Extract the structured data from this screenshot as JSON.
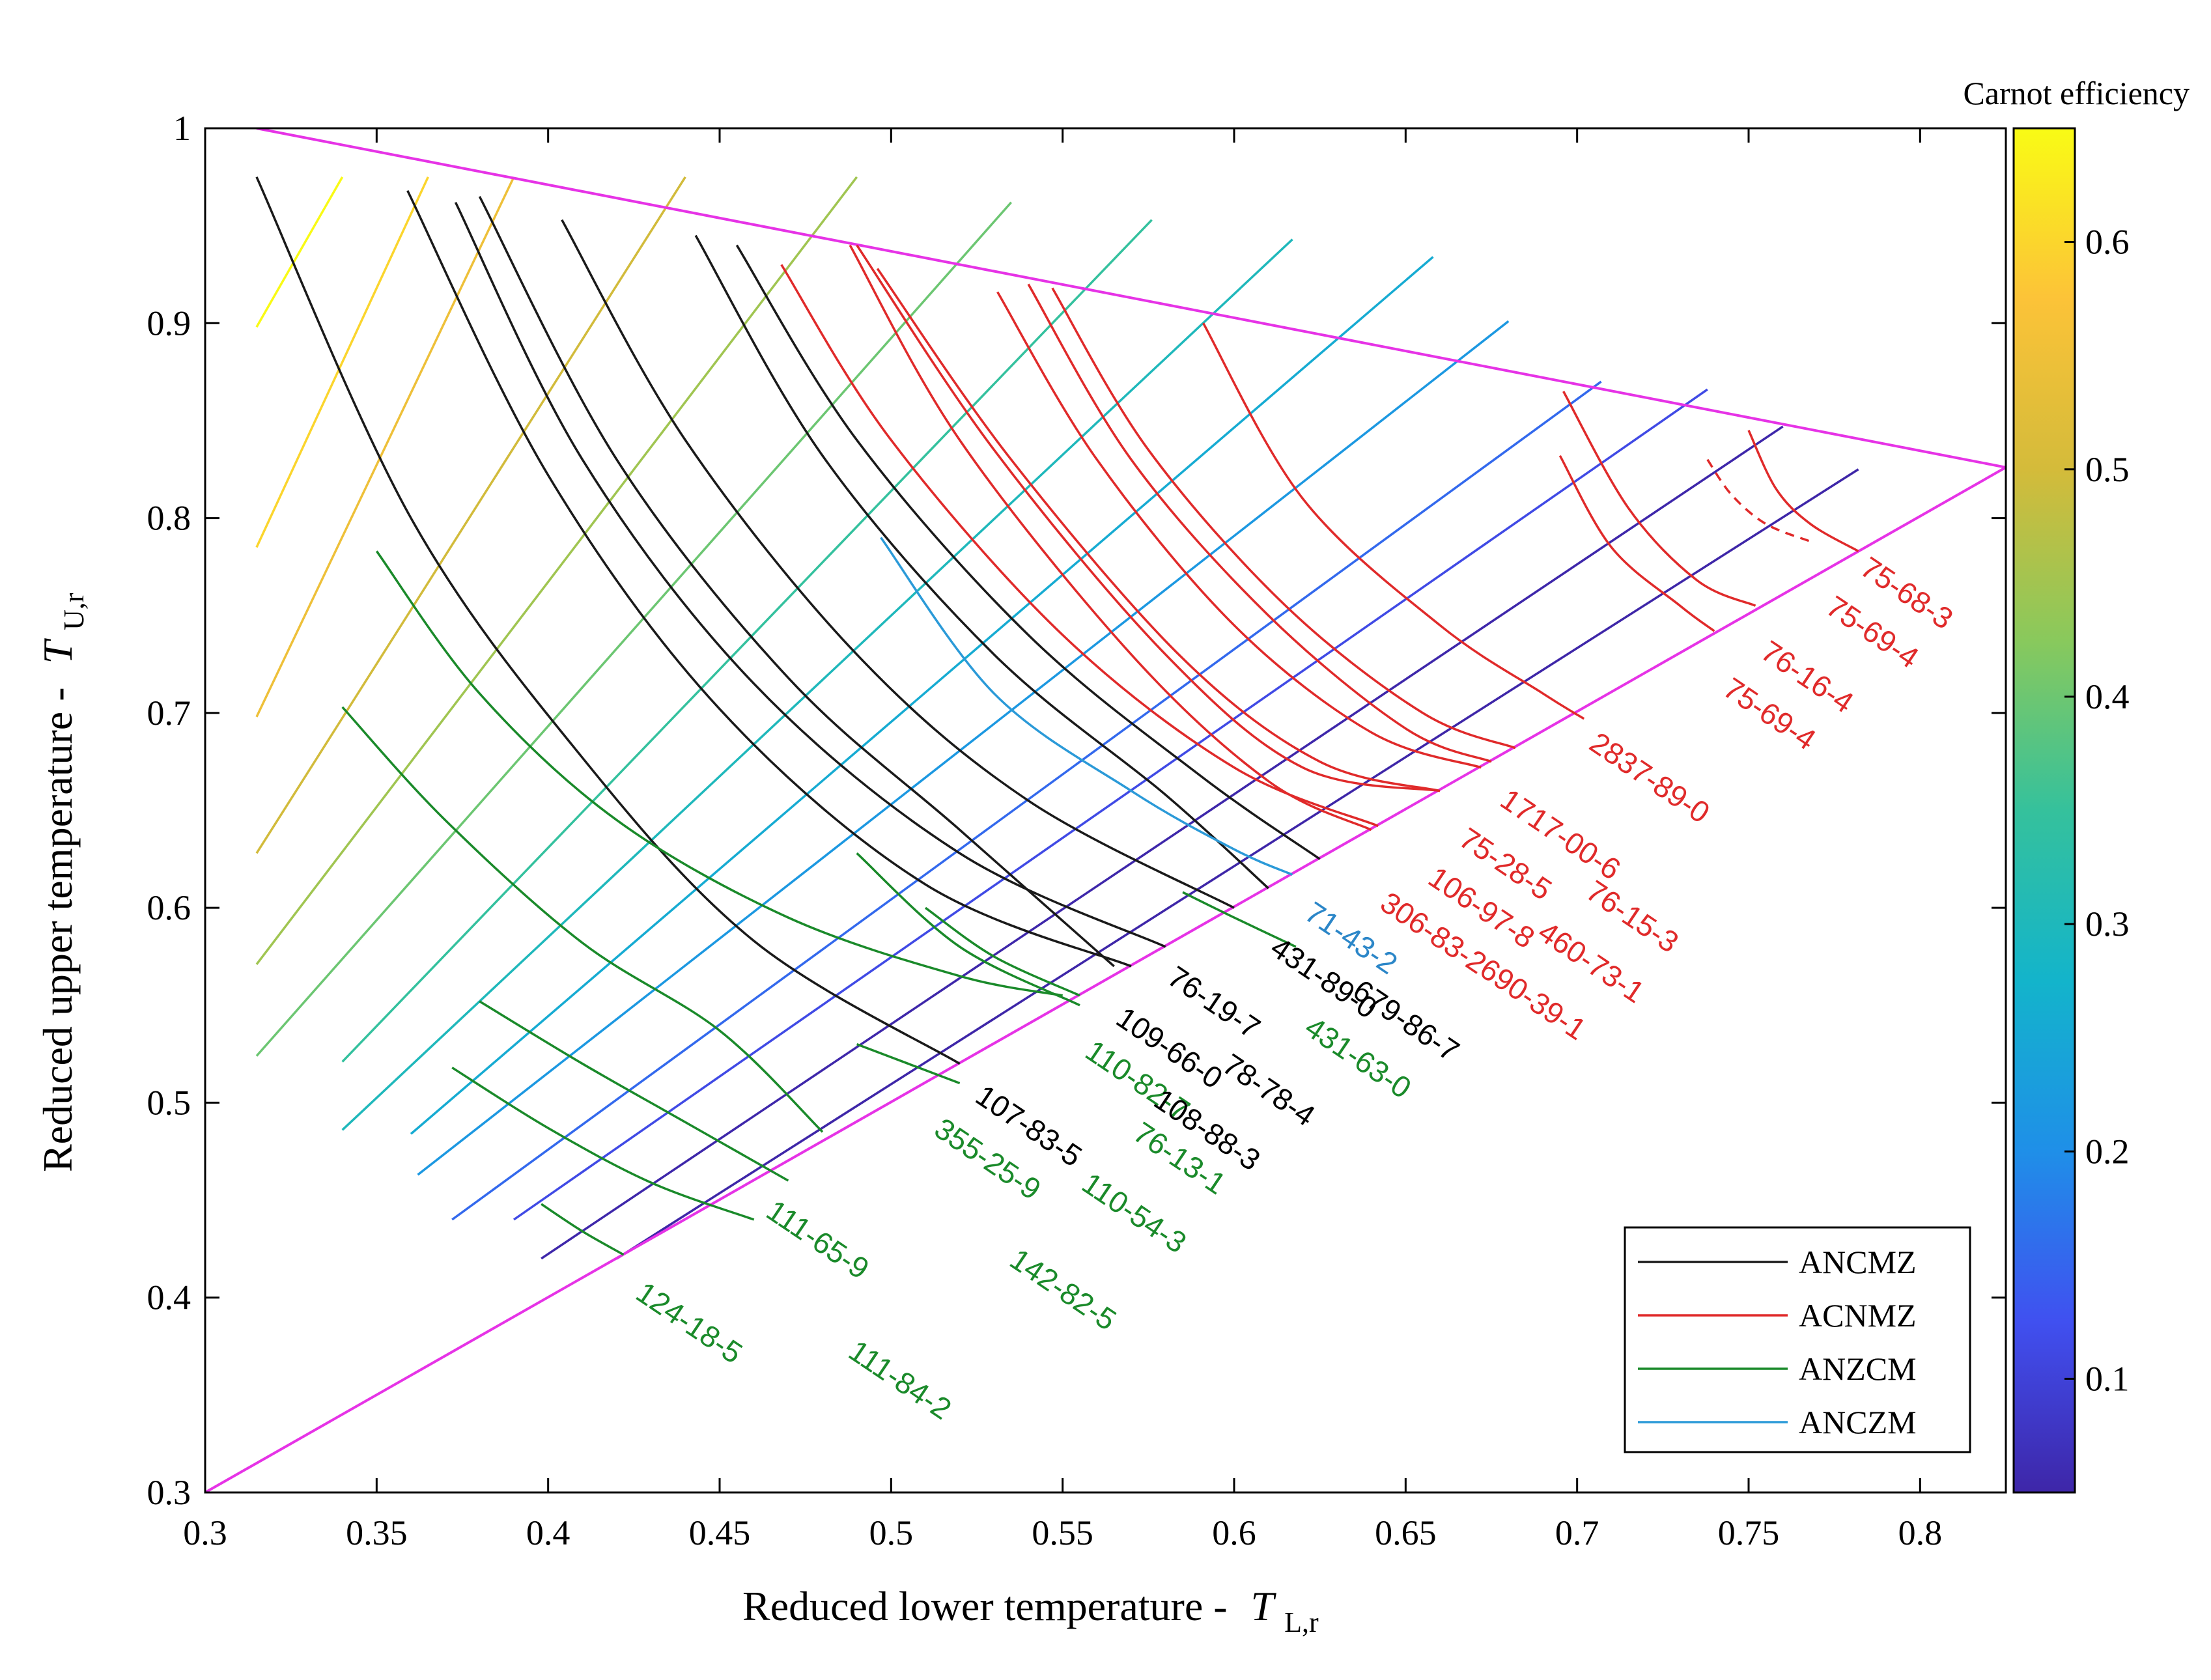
{
  "chart_data": {
    "type": "line",
    "title": "",
    "xlabel": "Reduced lower temperature -",
    "xlabel_symbol": "T",
    "xlabel_sub": "L,r",
    "ylabel": "Reduced upper temperature -",
    "ylabel_symbol": "T",
    "ylabel_sub": "U,r",
    "xlim": [
      0.3,
      0.825
    ],
    "ylim": [
      0.3,
      1.0
    ],
    "x_ticks": [
      "0.3",
      "0.35",
      "0.4",
      "0.45",
      "0.5",
      "0.55",
      "0.6",
      "0.65",
      "0.7",
      "0.75",
      "0.8"
    ],
    "y_ticks": [
      "0.3",
      "0.4",
      "0.5",
      "0.6",
      "0.7",
      "0.8",
      "0.9",
      "1"
    ],
    "grid": false,
    "colorbar": {
      "title": "Carnot efficiency",
      "range": [
        0.05,
        0.65
      ],
      "ticks": [
        "0.1",
        "0.2",
        "0.3",
        "0.4",
        "0.5",
        "0.6"
      ],
      "stops": [
        "#3e26a8",
        "#4050f0",
        "#1f8fe8",
        "#13b4cb",
        "#35c19c",
        "#89c95c",
        "#d4bb3a",
        "#fcc338",
        "#f9fb15"
      ]
    },
    "boundaries": {
      "color": "#e633e6",
      "upper_line": {
        "x": [
          0.315,
          0.825
        ],
        "y": [
          1.0,
          0.826
        ]
      },
      "diagonal": {
        "x": [
          0.3,
          0.825
        ],
        "y": [
          0.3,
          0.826
        ]
      }
    },
    "iso_efficiency_lines": {
      "color_map_value": "carnot efficiency = 1 - T_L/T_U",
      "lines": [
        {
          "x1": 0.315,
          "y1": 0.898,
          "x2": 0.34,
          "y2": 0.975
        },
        {
          "x1": 0.315,
          "y1": 0.785,
          "x2": 0.365,
          "y2": 0.975
        },
        {
          "x1": 0.315,
          "y1": 0.698,
          "x2": 0.39,
          "y2": 0.975
        },
        {
          "x1": 0.315,
          "y1": 0.628,
          "x2": 0.44,
          "y2": 0.975
        },
        {
          "x1": 0.315,
          "y1": 0.571,
          "x2": 0.49,
          "y2": 0.975
        },
        {
          "x1": 0.315,
          "y1": 0.524,
          "x2": 0.535,
          "y2": 0.962
        },
        {
          "x1": 0.34,
          "y1": 0.521,
          "x2": 0.576,
          "y2": 0.953
        },
        {
          "x1": 0.34,
          "y1": 0.486,
          "x2": 0.617,
          "y2": 0.943
        },
        {
          "x1": 0.36,
          "y1": 0.484,
          "x2": 0.658,
          "y2": 0.934
        },
        {
          "x1": 0.362,
          "y1": 0.463,
          "x2": 0.68,
          "y2": 0.901
        },
        {
          "x1": 0.372,
          "y1": 0.44,
          "x2": 0.707,
          "y2": 0.87
        },
        {
          "x1": 0.39,
          "y1": 0.44,
          "x2": 0.738,
          "y2": 0.866
        },
        {
          "x1": 0.398,
          "y1": 0.42,
          "x2": 0.76,
          "y2": 0.847
        },
        {
          "x1": 0.42,
          "y1": 0.42,
          "x2": 0.782,
          "y2": 0.825
        }
      ]
    },
    "series": [
      {
        "name": "ANCMZ",
        "color": "#1a1a1a",
        "curves": [
          {
            "label": "107-83-5",
            "x": [
              0.315,
              0.36,
              0.41,
              0.46,
              0.52
            ],
            "y": [
              0.975,
              0.8,
              0.677,
              0.583,
              0.52
            ]
          },
          {
            "label": "109-66-0",
            "x": [
              0.359,
              0.4,
              0.45,
              0.51,
              0.57
            ],
            "y": [
              0.968,
              0.822,
              0.702,
              0.612,
              0.57
            ]
          },
          {
            "label": "76-19-7",
            "x": [
              0.373,
              0.41,
              0.46,
              0.52,
              0.58
            ],
            "y": [
              0.962,
              0.83,
              0.715,
              0.628,
              0.58
            ]
          },
          {
            "label": "108-88-3",
            "x": [
              0.38,
              0.42,
              0.47,
              0.52,
              0.565
            ],
            "y": [
              0.965,
              0.83,
              0.718,
              0.64,
              0.57
            ]
          },
          {
            "label": "78-78-4",
            "x": [
              0.404,
              0.44,
              0.49,
              0.54,
              0.6
            ],
            "y": [
              0.953,
              0.84,
              0.73,
              0.655,
              0.6
            ]
          },
          {
            "label": "431-89-0",
            "x": [
              0.443,
              0.48,
              0.53,
              0.58,
              0.61
            ],
            "y": [
              0.945,
              0.832,
              0.73,
              0.658,
              0.61
            ]
          },
          {
            "label": "679-86-7",
            "x": [
              0.455,
              0.49,
              0.54,
              0.59,
              0.625
            ],
            "y": [
              0.94,
              0.84,
              0.74,
              0.668,
              0.625
            ]
          }
        ]
      },
      {
        "name": "ACNMZ",
        "color": "#e02a2a",
        "curves": [
          {
            "label": "306-83-2",
            "x": [
              0.488,
              0.52,
              0.57,
              0.61,
              0.64
            ],
            "y": [
              0.94,
              0.84,
              0.73,
              0.665,
              0.64
            ]
          },
          {
            "label": "106-97-8",
            "x": [
              0.49,
              0.53,
              0.58,
              0.62,
              0.66
            ],
            "y": [
              0.94,
              0.835,
              0.73,
              0.672,
              0.66
            ]
          },
          {
            "label": "75-28-5",
            "x": [
              0.496,
              0.535,
              0.585,
              0.625,
              0.66
            ],
            "y": [
              0.928,
              0.83,
              0.728,
              0.675,
              0.66
            ]
          },
          {
            "label": "460-73-1",
            "x": [
              0.468,
              0.5,
              0.55,
              0.6,
              0.642
            ],
            "y": [
              0.93,
              0.84,
              0.74,
              0.672,
              0.642
            ]
          },
          {
            "label": "1717-00-6",
            "x": [
              0.531,
              0.56,
              0.6,
              0.64,
              0.672
            ],
            "y": [
              0.916,
              0.83,
              0.745,
              0.69,
              0.672
            ]
          },
          {
            "label": "76-15-3",
            "x": [
              0.54,
              0.57,
              0.61,
              0.65,
              0.675
            ],
            "y": [
              0.92,
              0.83,
              0.75,
              0.692,
              0.675
            ]
          },
          {
            "label": "690-39-1",
            "x": [
              0.547,
              0.575,
              0.615,
              0.655,
              0.682
            ],
            "y": [
              0.918,
              0.835,
              0.755,
              0.7,
              0.682
            ]
          },
          {
            "label": "2837-89-0",
            "x": [
              0.591,
              0.62,
              0.66,
              0.69,
              0.702
            ],
            "y": [
              0.9,
              0.81,
              0.745,
              0.71,
              0.697
            ]
          },
          {
            "label": "75-69-4 (lower)",
            "x": [
              0.695,
              0.71,
              0.73,
              0.74
            ],
            "y": [
              0.832,
              0.785,
              0.755,
              0.742
            ]
          },
          {
            "label": "76-16-4",
            "x": [
              0.696,
              0.715,
              0.735,
              0.752
            ],
            "y": [
              0.865,
              0.805,
              0.768,
              0.755
            ]
          },
          {
            "label": "75-69-4 (upper)",
            "x": [
              0.738,
              0.745,
              0.755,
              0.768
            ],
            "y": [
              0.83,
              0.812,
              0.797,
              0.788
            ],
            "dashed": true
          },
          {
            "label": "75-68-3",
            "x": [
              0.75,
              0.758,
              0.768,
              0.782
            ],
            "y": [
              0.845,
              0.815,
              0.797,
              0.783
            ]
          }
        ]
      },
      {
        "name": "ANZCM",
        "color": "#1a8a2a",
        "curves": [
          {
            "label": "124-18-5",
            "x": [
              0.35,
              0.38,
              0.42,
              0.47,
              0.52,
              0.55
            ],
            "y": [
              0.783,
              0.71,
              0.645,
              0.595,
              0.565,
              0.555
            ]
          },
          {
            "label": "111-65-9",
            "x": [
              0.34,
              0.37,
              0.41,
              0.45,
              0.48
            ],
            "y": [
              0.703,
              0.645,
              0.582,
              0.537,
              0.485
            ]
          },
          {
            "label": "111-84-2",
            "x": [
              0.38,
              0.41,
              0.44,
              0.47
            ],
            "y": [
              0.552,
              0.52,
              0.49,
              0.46
            ]
          },
          {
            "label": "142-82-5",
            "x": [
              0.372,
              0.4,
              0.43,
              0.46
            ],
            "y": [
              0.518,
              0.487,
              0.459,
              0.44
            ]
          },
          {
            "label": "110-54-3",
            "x": [
              0.398,
              0.41,
              0.422
            ],
            "y": [
              0.448,
              0.434,
              0.422
            ]
          },
          {
            "label": "355-25-9",
            "x": [
              0.49,
              0.505,
              0.52
            ],
            "y": [
              0.53,
              0.52,
              0.51
            ]
          },
          {
            "label": "76-13-1",
            "x": [
              0.51,
              0.53,
              0.555
            ],
            "y": [
              0.6,
              0.575,
              0.555
            ]
          },
          {
            "label": "110-82-7",
            "x": [
              0.49,
              0.52,
              0.555
            ],
            "y": [
              0.628,
              0.58,
              0.55
            ]
          },
          {
            "label": "431-63-0",
            "x": [
              0.585,
              0.6,
              0.618
            ],
            "y": [
              0.608,
              0.595,
              0.58
            ]
          }
        ]
      },
      {
        "name": "ANCZM",
        "color": "#2b9ad8",
        "curves": [
          {
            "label": "71-43-2",
            "x": [
              0.497,
              0.53,
              0.57,
              0.6,
              0.617
            ],
            "y": [
              0.79,
              0.71,
              0.66,
              0.63,
              0.617
            ]
          }
        ]
      }
    ],
    "legend": {
      "position": "bottom-right",
      "entries": [
        "ANCMZ",
        "ACNMZ",
        "ANZCM",
        "ANCZM"
      ]
    },
    "annotations": [
      {
        "text": "75-68-3",
        "color": "#e02a2a",
        "x": 0.782,
        "y": 0.772
      },
      {
        "text": "75-69-4",
        "color": "#e02a2a",
        "x": 0.772,
        "y": 0.752
      },
      {
        "text": "76-16-4",
        "color": "#e02a2a",
        "x": 0.753,
        "y": 0.729
      },
      {
        "text": "75-69-4",
        "color": "#e02a2a",
        "x": 0.742,
        "y": 0.71
      },
      {
        "text": "2837-89-0",
        "color": "#e02a2a",
        "x": 0.703,
        "y": 0.682
      },
      {
        "text": "1717-00-6",
        "color": "#e02a2a",
        "x": 0.677,
        "y": 0.653
      },
      {
        "text": "75-28-5",
        "color": "#e02a2a",
        "x": 0.665,
        "y": 0.633
      },
      {
        "text": "76-15-3",
        "color": "#e02a2a",
        "x": 0.702,
        "y": 0.606
      },
      {
        "text": "106-97-8",
        "color": "#e02a2a",
        "x": 0.656,
        "y": 0.613
      },
      {
        "text": "306-83-2",
        "color": "#e02a2a",
        "x": 0.642,
        "y": 0.6
      },
      {
        "text": "460-73-1",
        "color": "#e02a2a",
        "x": 0.688,
        "y": 0.585
      },
      {
        "text": "690-39-1",
        "color": "#e02a2a",
        "x": 0.671,
        "y": 0.566
      },
      {
        "text": "71-43-2",
        "color": "#2b86c8",
        "x": 0.62,
        "y": 0.595
      },
      {
        "text": "431-89-0",
        "color": "#000000",
        "x": 0.61,
        "y": 0.577
      },
      {
        "text": "679-86-7",
        "color": "#000000",
        "x": 0.634,
        "y": 0.555
      },
      {
        "text": "431-63-0",
        "color": "#1a8a2a",
        "x": 0.62,
        "y": 0.536
      },
      {
        "text": "76-19-7",
        "color": "#000000",
        "x": 0.58,
        "y": 0.562
      },
      {
        "text": "109-66-0",
        "color": "#000000",
        "x": 0.565,
        "y": 0.541
      },
      {
        "text": "78-78-4",
        "color": "#000000",
        "x": 0.596,
        "y": 0.517
      },
      {
        "text": "110-82-7",
        "color": "#1a8a2a",
        "x": 0.556,
        "y": 0.524
      },
      {
        "text": "108-88-3",
        "color": "#000000",
        "x": 0.576,
        "y": 0.499
      },
      {
        "text": "107-83-5",
        "color": "#000000",
        "x": 0.524,
        "y": 0.501
      },
      {
        "text": "76-13-1",
        "color": "#1a8a2a",
        "x": 0.57,
        "y": 0.482
      },
      {
        "text": "355-25-9",
        "color": "#1a8a2a",
        "x": 0.512,
        "y": 0.484
      },
      {
        "text": "110-54-3",
        "color": "#1a8a2a",
        "x": 0.555,
        "y": 0.456
      },
      {
        "text": "111-65-9",
        "color": "#1a8a2a",
        "x": 0.463,
        "y": 0.442
      },
      {
        "text": "142-82-5",
        "color": "#1a8a2a",
        "x": 0.534,
        "y": 0.417
      },
      {
        "text": "124-18-5",
        "color": "#1a8a2a",
        "x": 0.425,
        "y": 0.4
      },
      {
        "text": "111-84-2",
        "color": "#1a8a2a",
        "x": 0.487,
        "y": 0.37
      }
    ]
  }
}
